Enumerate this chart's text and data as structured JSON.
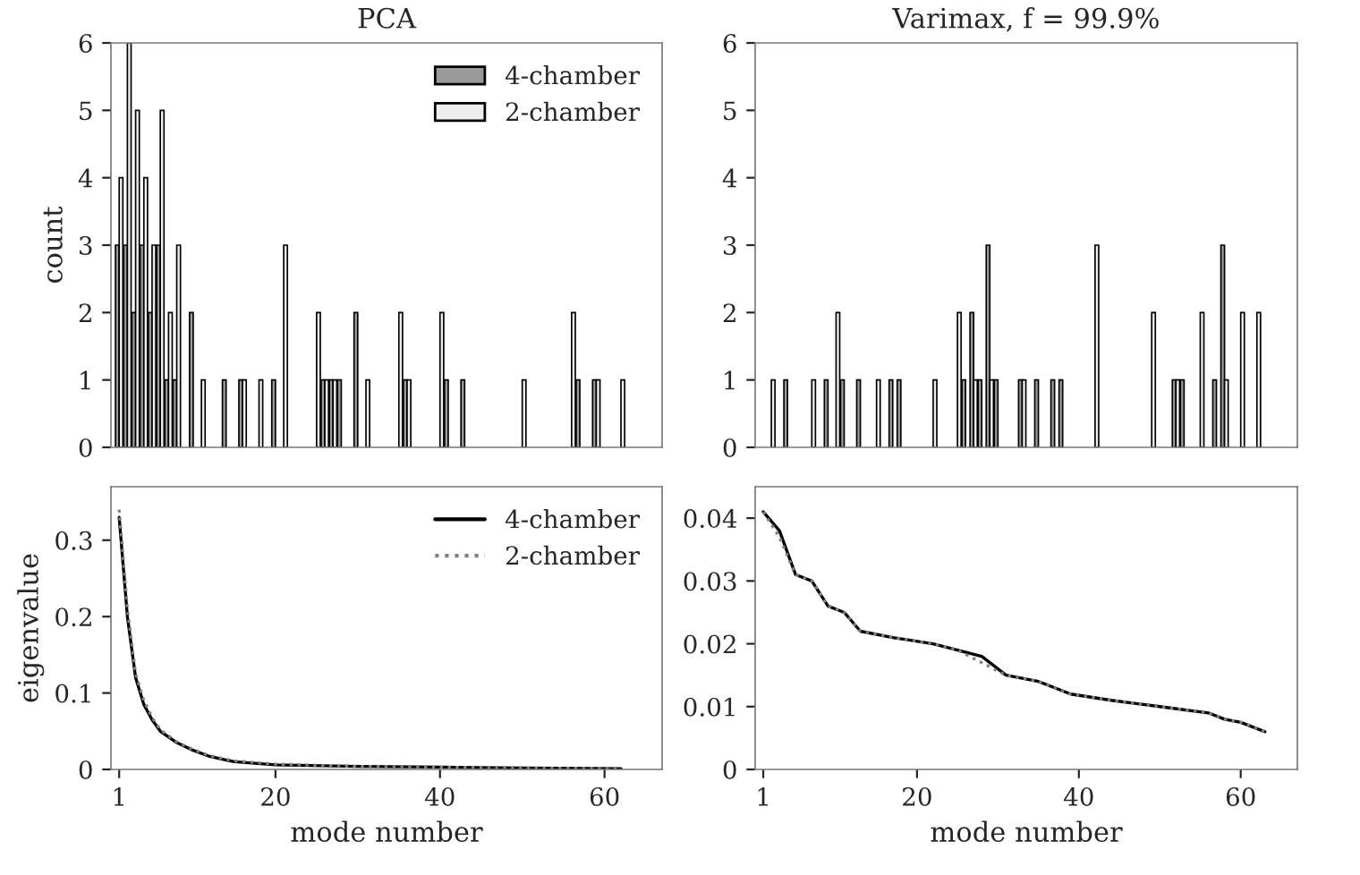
{
  "chart_data": [
    {
      "type": "bar",
      "title": "PCA",
      "ylabel": "count",
      "xlim": [
        0,
        67
      ],
      "ylim": [
        0,
        6
      ],
      "yticks": [
        0,
        1,
        2,
        3,
        4,
        5,
        6
      ],
      "tick_labels": "y",
      "legend": "top right",
      "grid": false,
      "x": [
        1,
        2,
        3,
        4,
        5,
        6,
        7,
        8,
        10,
        11,
        14,
        16,
        18,
        20,
        21,
        25,
        26,
        27,
        28,
        30,
        31,
        35,
        36,
        40,
        41,
        43,
        50,
        56,
        57,
        59,
        62
      ],
      "series": [
        {
          "name": "4-chamber",
          "color": "#9a9a9a",
          "values": [
            3,
            3,
            2,
            3,
            2,
            3,
            1,
            1,
            2,
            0,
            1,
            1,
            0,
            1,
            0,
            0,
            1,
            1,
            1,
            2,
            0,
            0,
            1,
            0,
            1,
            1,
            0,
            0,
            1,
            1,
            0
          ]
        },
        {
          "name": "2-chamber",
          "color": "#eeeeee",
          "values": [
            4,
            6,
            5,
            4,
            3,
            5,
            2,
            3,
            0,
            1,
            0,
            1,
            1,
            0,
            3,
            2,
            1,
            1,
            0,
            0,
            1,
            2,
            1,
            2,
            0,
            0,
            1,
            2,
            0,
            1,
            1
          ]
        }
      ]
    },
    {
      "type": "bar",
      "title": "Varimax, f = 99.9%",
      "xlim": [
        0,
        67
      ],
      "ylim": [
        0,
        6
      ],
      "yticks": [
        0,
        1,
        2,
        3,
        4,
        5,
        6
      ],
      "tick_labels": "y",
      "grid": false,
      "x": [
        2,
        4,
        7,
        9,
        10,
        11,
        13,
        15,
        17,
        18,
        22,
        25,
        26,
        27,
        28,
        29,
        30,
        33,
        35,
        37,
        38,
        42,
        49,
        52,
        53,
        55,
        57,
        58,
        60,
        62
      ],
      "series": [
        {
          "color": "#9a9a9a",
          "values": [
            0,
            1,
            0,
            1,
            0,
            1,
            1,
            0,
            1,
            1,
            0,
            0,
            1,
            2,
            1,
            3,
            1,
            1,
            1,
            1,
            1,
            0,
            0,
            1,
            1,
            0,
            1,
            3,
            0,
            0
          ]
        },
        {
          "color": "#eeeeee",
          "values": [
            1,
            0,
            1,
            0,
            2,
            0,
            0,
            1,
            0,
            0,
            1,
            2,
            0,
            1,
            0,
            1,
            0,
            1,
            0,
            0,
            0,
            3,
            2,
            1,
            0,
            2,
            0,
            1,
            2,
            2
          ]
        }
      ]
    },
    {
      "type": "line",
      "xlabel": "mode number",
      "ylabel": "eigenvalue",
      "xlim": [
        0,
        67
      ],
      "xticks": [
        1,
        20,
        40,
        60
      ],
      "ylim": [
        0,
        0.37
      ],
      "yticks": [
        0,
        0.1,
        0.2,
        0.3
      ],
      "legend": "top right",
      "grid": false,
      "x": [
        1,
        2,
        3,
        4,
        5,
        6,
        8,
        10,
        12,
        15,
        20,
        30,
        40,
        50,
        62
      ],
      "series": [
        {
          "name": "4-chamber",
          "color": "#000000",
          "line_style": "solid",
          "values": [
            0.33,
            0.2,
            0.12,
            0.085,
            0.065,
            0.05,
            0.035,
            0.025,
            0.017,
            0.01,
            0.006,
            0.004,
            0.003,
            0.002,
            0.001
          ]
        },
        {
          "name": "2-chamber",
          "color": "#808080",
          "line_style": "dotted",
          "values": [
            0.34,
            0.21,
            0.125,
            0.09,
            0.068,
            0.052,
            0.036,
            0.026,
            0.018,
            0.011,
            0.007,
            0.004,
            0.003,
            0.002,
            0.001
          ]
        }
      ]
    },
    {
      "type": "line",
      "xlabel": "mode number",
      "xlim": [
        0,
        67
      ],
      "xticks": [
        1,
        20,
        40,
        60
      ],
      "ylim": [
        0,
        0.045
      ],
      "yticks": [
        0,
        0.01,
        0.02,
        0.03,
        0.04
      ],
      "grid": false,
      "x": [
        1,
        3,
        5,
        7,
        9,
        11,
        13,
        17,
        22,
        25,
        28,
        31,
        35,
        39,
        44,
        50,
        56,
        58,
        60,
        63
      ],
      "series": [
        {
          "color": "#000000",
          "line_style": "solid",
          "values": [
            0.041,
            0.038,
            0.031,
            0.03,
            0.026,
            0.025,
            0.022,
            0.021,
            0.02,
            0.019,
            0.018,
            0.015,
            0.014,
            0.012,
            0.011,
            0.01,
            0.009,
            0.008,
            0.0075,
            0.006
          ]
        },
        {
          "color": "#808080",
          "line_style": "dotted",
          "values": [
            0.041,
            0.037,
            0.031,
            0.03,
            0.026,
            0.025,
            0.022,
            0.021,
            0.02,
            0.019,
            0.017,
            0.015,
            0.014,
            0.012,
            0.011,
            0.01,
            0.009,
            0.008,
            0.0075,
            0.006
          ]
        }
      ]
    }
  ]
}
